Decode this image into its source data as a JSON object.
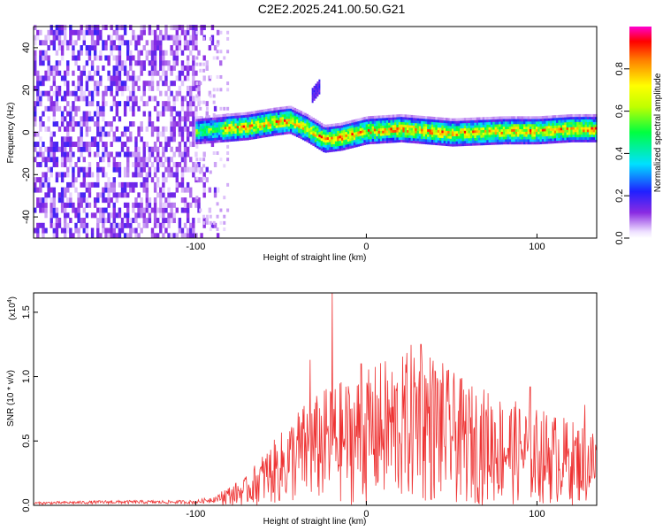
{
  "title": "C2E2.2025.241.00.50.G21",
  "chart_data": [
    {
      "type": "heatmap",
      "xlabel": "Height of straight line (km)",
      "ylabel": "Frequency (Hz)",
      "xlim": [
        -195,
        135
      ],
      "ylim": [
        -50,
        50
      ],
      "xticks": [
        -100,
        0,
        100
      ],
      "yticks": [
        -40,
        -20,
        0,
        20,
        40
      ],
      "colorbar": {
        "label": "Normalized spectral amplitude",
        "range": [
          0,
          1
        ],
        "ticks": [
          "0.0",
          "0.2",
          "0.4",
          "0.6",
          "0.8"
        ],
        "tick_values": [
          0.0,
          0.2,
          0.4,
          0.6,
          0.8
        ]
      },
      "ridge": {
        "x": [
          -100,
          -85,
          -70,
          -55,
          -45,
          -35,
          -25,
          -15,
          0,
          20,
          50,
          80,
          100,
          120,
          135
        ],
        "y": [
          0,
          1,
          2,
          4,
          5,
          1,
          -4,
          -3,
          0,
          1,
          -1,
          0,
          0,
          1,
          1
        ]
      },
      "secondary_feature": {
        "x": [
          -32,
          -27
        ],
        "y": [
          17,
          22
        ]
      },
      "noise_region_x": [
        -195,
        -85
      ]
    },
    {
      "type": "line",
      "xlabel": "Height of straight line (km)",
      "ylabel": "SNR (10 * v/v)",
      "yscale_label": "(x10",
      "yscale_exp": "4",
      "xlim": [
        -195,
        135
      ],
      "ylim": [
        0,
        1.65
      ],
      "xticks": [
        -100,
        0,
        100
      ],
      "yticks": [
        "0.0",
        "0.5",
        "1.0",
        "1.5"
      ],
      "ytick_values": [
        0.0,
        0.5,
        1.0,
        1.5
      ],
      "envelope": {
        "x": [
          -195,
          -150,
          -100,
          -80,
          -70,
          -60,
          -50,
          -40,
          -30,
          -20,
          -10,
          0,
          10,
          20,
          30,
          40,
          50,
          60,
          70,
          80,
          90,
          100,
          110,
          120,
          135
        ],
        "y": [
          0.02,
          0.03,
          0.03,
          0.08,
          0.12,
          0.22,
          0.3,
          0.4,
          0.45,
          0.5,
          0.52,
          0.55,
          0.6,
          0.6,
          0.7,
          0.62,
          0.55,
          0.5,
          0.48,
          0.45,
          0.42,
          0.4,
          0.38,
          0.35,
          0.32
        ]
      },
      "peaks": [
        {
          "x": -20,
          "y": 1.65
        },
        {
          "x": -33,
          "y": 1.13
        },
        {
          "x": 32,
          "y": 1.25
        },
        {
          "x": -3,
          "y": 1.1
        },
        {
          "x": 96,
          "y": 0.92
        },
        {
          "x": 128,
          "y": 0.78
        }
      ],
      "color": "#ee3333"
    }
  ]
}
